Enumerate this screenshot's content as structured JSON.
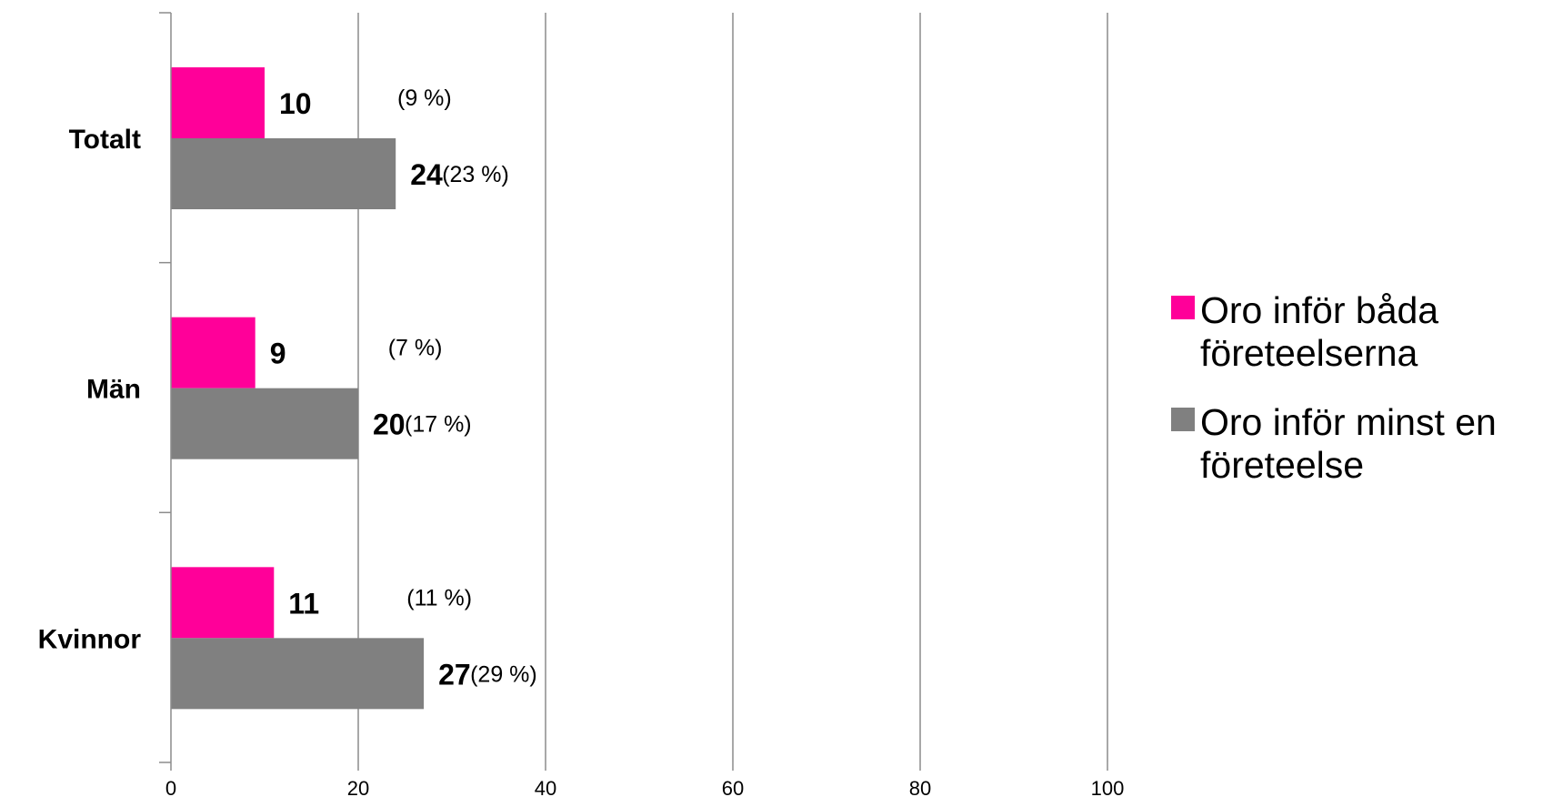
{
  "chart_data": {
    "type": "bar",
    "orientation": "horizontal",
    "categories": [
      "Totalt",
      "Män",
      "Kvinnor"
    ],
    "series": [
      {
        "name": "Oro inför båda företeelserna",
        "color": "#ff0099",
        "values": [
          10,
          9,
          11
        ],
        "value_labels": [
          "10",
          "9",
          "11"
        ],
        "percent_labels": [
          "(9 %)",
          "(7 %)",
          "(11 %)"
        ]
      },
      {
        "name": "Oro inför minst en företeelse",
        "color": "#808080",
        "values": [
          24,
          20,
          27
        ],
        "value_labels": [
          "24",
          "20",
          "27"
        ],
        "percent_labels": [
          "(23 %)",
          "(17 %)",
          "(29 %)"
        ]
      }
    ],
    "xlim": [
      0,
      100
    ],
    "x_ticks": [
      "0",
      "20",
      "40",
      "60",
      "80",
      "100"
    ],
    "grid": true,
    "legend_position": "right",
    "legend_lines": [
      [
        "Oro inför båda",
        "företeelserna"
      ],
      [
        "Oro inför minst en",
        "företeelse"
      ]
    ],
    "title": "",
    "xlabel": "",
    "ylabel": ""
  }
}
